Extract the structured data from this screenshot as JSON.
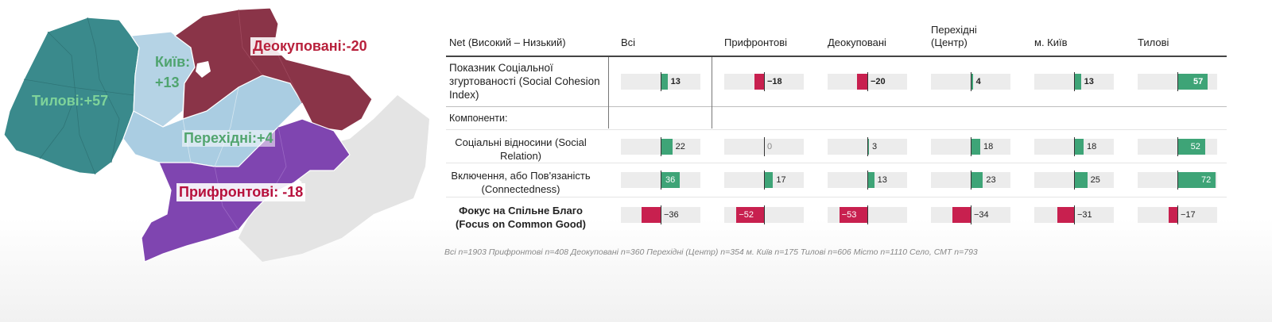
{
  "map": {
    "labels": {
      "kyiv": "Київ:\n+13",
      "tylovi": "Тилові:+57",
      "perekhidni": "Перехідні:+4",
      "deokupovani": "Деокуповані:-20",
      "prifrontovi": "Прифронтові: -18"
    },
    "colors": {
      "tylovi": "#3a8a8c",
      "kyiv": "#b5d3e5",
      "perekhidni": "#aacde2",
      "deokupovani": "#8a3448",
      "prifrontovi": "#7f45b0",
      "other": "#e3e3e3"
    }
  },
  "table": {
    "corner_header": "Net (Високий – Низький)",
    "columns": [
      "Всі",
      "Прифронтові",
      "Деокуповані",
      "Перехідні\n(Центр)",
      "м. Київ",
      "Тилові"
    ],
    "components_label": "Компоненти:",
    "footnote": "Всі n=1903 Прифронтові n=408 Деокуповані n=360 Перехідні (Центр) n=354 м. Київ n=175 Тилові n=606 Місто n=1110 Село, СМТ n=793"
  },
  "chart_data": {
    "type": "bar",
    "orientation": "horizontal",
    "categories": [
      "Всі",
      "Прифронтові",
      "Деокуповані",
      "Перехідні (Центр)",
      "м. Київ",
      "Тилові"
    ],
    "series": [
      {
        "name": "Показник Соціальної згуртованості (Social Cohesion Index)",
        "values": [
          13,
          -18,
          -20,
          4,
          13,
          57
        ]
      },
      {
        "name": "Соціальні відносини (Social Relation)",
        "values": [
          22,
          0,
          3,
          18,
          18,
          52
        ]
      },
      {
        "name": "Включення, або Пов'язаність (Connectedness)",
        "values": [
          36,
          17,
          13,
          23,
          25,
          72
        ]
      },
      {
        "name": "Фокус на Спільне Благо (Focus on Common Good)",
        "values": [
          -36,
          -52,
          -53,
          -34,
          -31,
          -17
        ]
      }
    ],
    "colors": {
      "positive": "#3ea477",
      "negative": "#c8204f"
    }
  }
}
